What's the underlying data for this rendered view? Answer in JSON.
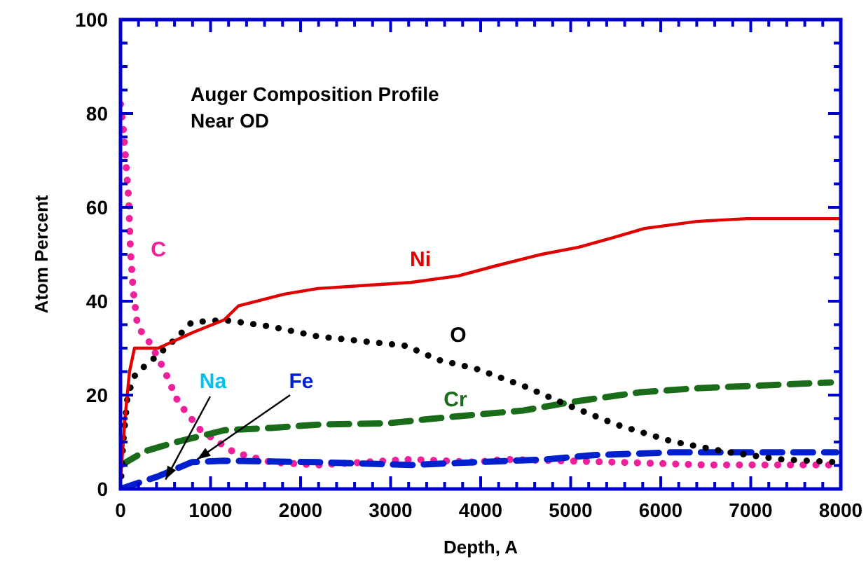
{
  "chart_data": {
    "type": "line",
    "title": "Auger Composition Profile",
    "subtitle": "Near OD",
    "xlabel": "Depth, A",
    "ylabel": "Atom Percent",
    "xlim": [
      0,
      8000
    ],
    "ylim": [
      0,
      100
    ],
    "xticks": [
      0,
      {
        "value": 200,
        "label": null
      },
      {
        "value": 400,
        "label": null
      },
      {
        "value": 600,
        "label": null
      },
      {
        "value": 800,
        "label": null
      },
      1000,
      {
        "value": 1200,
        "label": null
      },
      {
        "value": 1400,
        "label": null
      },
      {
        "value": 1600,
        "label": null
      },
      {
        "value": 1800,
        "label": null
      },
      2000,
      {
        "value": 2200,
        "label": null
      },
      {
        "value": 2400,
        "label": null
      },
      {
        "value": 2600,
        "label": null
      },
      {
        "value": 2800,
        "label": null
      },
      3000,
      {
        "value": 3200,
        "label": null
      },
      {
        "value": 3400,
        "label": null
      },
      {
        "value": 3600,
        "label": null
      },
      {
        "value": 3800,
        "label": null
      },
      4000,
      {
        "value": 4200,
        "label": null
      },
      {
        "value": 4400,
        "label": null
      },
      {
        "value": 4600,
        "label": null
      },
      {
        "value": 4800,
        "label": null
      },
      5000,
      {
        "value": 5200,
        "label": null
      },
      {
        "value": 5400,
        "label": null
      },
      {
        "value": 5600,
        "label": null
      },
      {
        "value": 5800,
        "label": null
      },
      6000,
      {
        "value": 6200,
        "label": null
      },
      {
        "value": 6400,
        "label": null
      },
      {
        "value": 6600,
        "label": null
      },
      {
        "value": 6800,
        "label": null
      },
      7000,
      {
        "value": 7200,
        "label": null
      },
      {
        "value": 7400,
        "label": null
      },
      {
        "value": 7600,
        "label": null
      },
      {
        "value": 7800,
        "label": null
      },
      8000
    ],
    "yticks": [
      0,
      {
        "value": 5,
        "label": null
      },
      {
        "value": 10,
        "label": null
      },
      {
        "value": 15,
        "label": null
      },
      20,
      {
        "value": 25,
        "label": null
      },
      {
        "value": 30,
        "label": null
      },
      {
        "value": 35,
        "label": null
      },
      40,
      {
        "value": 45,
        "label": null
      },
      {
        "value": 50,
        "label": null
      },
      {
        "value": 55,
        "label": null
      },
      60,
      {
        "value": 65,
        "label": null
      },
      {
        "value": 70,
        "label": null
      },
      {
        "value": 75,
        "label": null
      },
      80,
      {
        "value": 85,
        "label": null
      },
      {
        "value": 90,
        "label": null
      },
      {
        "value": 95,
        "label": null
      },
      100
    ],
    "grid": false,
    "series": [
      {
        "name": "Ni",
        "color": "#e00000",
        "line_style": "solid",
        "x": [
          0,
          50,
          100,
          155,
          420,
          810,
          1150,
          1310,
          1820,
          2190,
          3220,
          3750,
          4160,
          4680,
          5090,
          5460,
          5820,
          6400,
          6960,
          8000
        ],
        "values": [
          2,
          15,
          25,
          30,
          30,
          33.4,
          36,
          39,
          41.5,
          42.7,
          44,
          45.4,
          47.5,
          50,
          51.5,
          53.5,
          55.5,
          57,
          57.6,
          57.6
        ]
      },
      {
        "name": "O",
        "color": "#000000",
        "line_style": "dotted",
        "x": [
          0,
          30,
          80,
          166,
          420,
          640,
          790,
          1150,
          1670,
          2190,
          3170,
          3530,
          3950,
          4470,
          5000,
          5510,
          6130,
          6760,
          7330,
          7950
        ],
        "values": [
          0,
          10,
          20,
          24.5,
          28.6,
          32.5,
          35.5,
          36,
          34.6,
          32.5,
          30.5,
          27.5,
          25.6,
          22,
          17.6,
          13.7,
          10.1,
          7.8,
          6.3,
          5.7
        ]
      },
      {
        "name": "Cr",
        "color": "#1a6b1a",
        "line_style": "dashed",
        "x": [
          0,
          265,
          640,
          1150,
          1670,
          2190,
          2970,
          3750,
          4470,
          5000,
          5770,
          6440,
          7070,
          7890
        ],
        "values": [
          5,
          8,
          10.1,
          12.5,
          13,
          13.7,
          14,
          15.5,
          16.7,
          18.5,
          20.6,
          21.5,
          22,
          22.7
        ]
      },
      {
        "name": "Fe",
        "color": "#0020d0",
        "line_style": "dashed",
        "x": [
          0,
          420,
          790,
          1150,
          2190,
          3220,
          3950,
          4730,
          5250,
          6130,
          7580,
          7950
        ],
        "values": [
          0,
          2.7,
          5.7,
          6,
          5.7,
          5.1,
          5.7,
          6.3,
          7.2,
          7.8,
          7.8,
          7.8
        ]
      },
      {
        "name": "C",
        "color": "#f0209a",
        "line_style": "dotted",
        "x": [
          0,
          30,
          90,
          110,
          140,
          190,
          330,
          480,
          640,
          890,
          1260,
          1670,
          2190,
          3220,
          3950,
          4260,
          5510,
          6530,
          7950
        ],
        "values": [
          82,
          77,
          62,
          51,
          42.5,
          34.6,
          31,
          25.6,
          18.5,
          12.5,
          7.8,
          5.7,
          5.1,
          6.3,
          5.7,
          6.3,
          5.7,
          5.1,
          5.1
        ]
      }
    ],
    "annotations": [
      {
        "text": "Na",
        "x": 500,
        "y": 2
      }
    ]
  }
}
